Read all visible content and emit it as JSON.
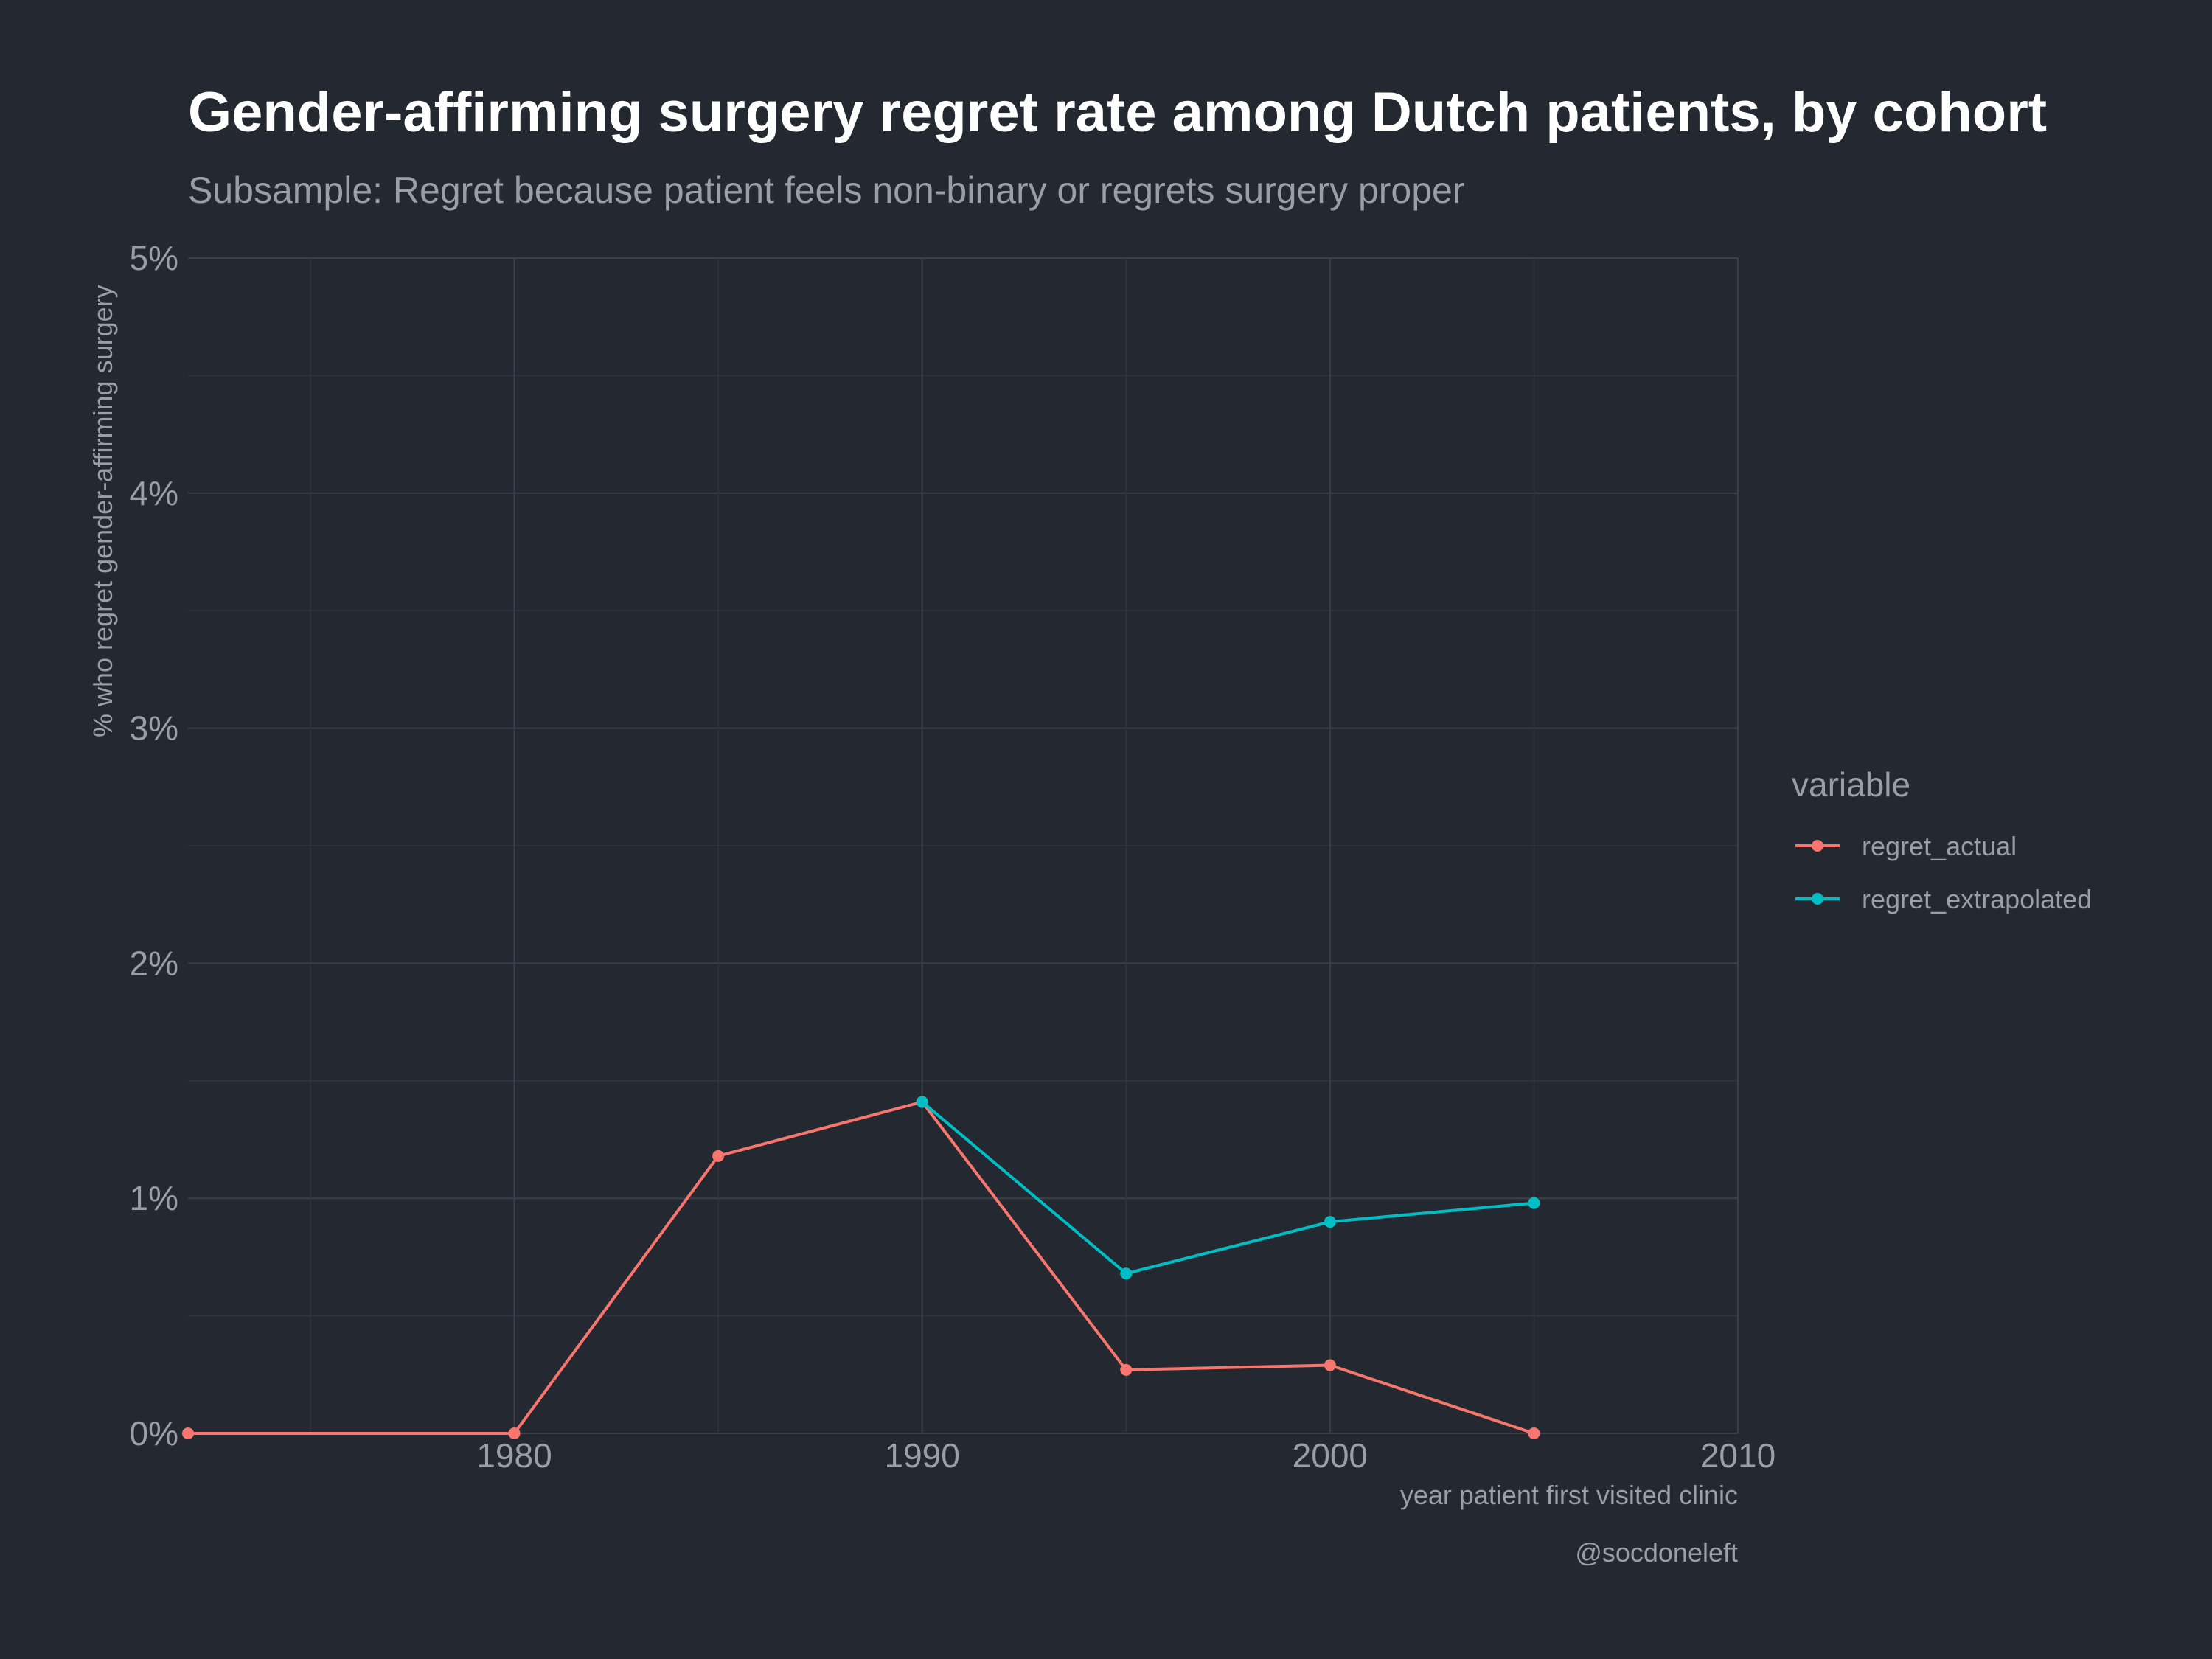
{
  "chart_data": {
    "type": "line",
    "title": "Gender-affirming surgery regret rate among Dutch patients, by cohort",
    "subtitle": "Subsample: Regret because patient feels non-binary or regrets surgery proper",
    "xlabel": "year patient first visited clinic",
    "ylabel": "% who regret gender-affirming surgery",
    "caption": "@socdoneleft",
    "xlim": [
      1972,
      2010
    ],
    "ylim": [
      0,
      5
    ],
    "x_ticks": [
      "1980",
      "1990",
      "2000",
      "2010"
    ],
    "y_ticks": [
      "0%",
      "1%",
      "2%",
      "3%",
      "4%",
      "5%"
    ],
    "grid": true,
    "legend": {
      "title": "variable",
      "position": "right"
    },
    "series": [
      {
        "name": "regret_actual",
        "color": "#f8766d",
        "x": [
          1972,
          1980,
          1985,
          1990,
          1995,
          2000,
          2005
        ],
        "y": [
          0.0,
          0.0,
          1.18,
          1.41,
          0.27,
          0.29,
          0.0
        ]
      },
      {
        "name": "regret_extrapolated",
        "color": "#00bfc4",
        "x": [
          1990,
          1995,
          2000,
          2005
        ],
        "y": [
          1.41,
          0.68,
          0.9,
          0.98
        ]
      }
    ]
  }
}
